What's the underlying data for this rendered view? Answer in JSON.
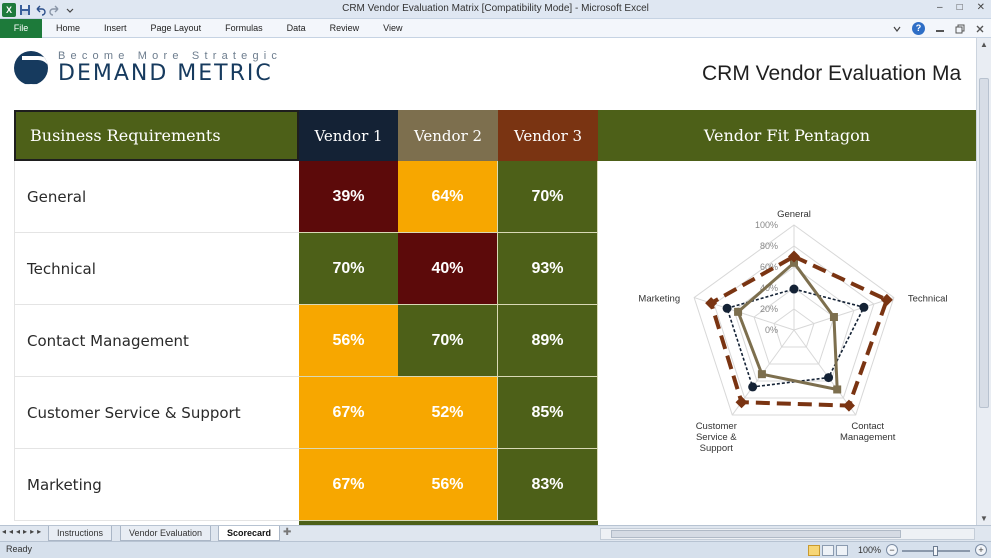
{
  "window": {
    "title": "CRM Vendor Evaluation Matrix  [Compatibility Mode]  -  Microsoft Excel",
    "app_icon_label": "X",
    "controls": [
      "–",
      "□",
      "✕"
    ]
  },
  "ribbon": {
    "file_label": "File",
    "tabs": [
      "Home",
      "Insert",
      "Page Layout",
      "Formulas",
      "Data",
      "Review",
      "View"
    ]
  },
  "logo": {
    "tagline": "Become More Strategic",
    "name": "DEMAND METRIC"
  },
  "report_title": "CRM Vendor Evaluation Ma",
  "table": {
    "header_requirements": "Business Requirements",
    "vendors": [
      "Vendor 1",
      "Vendor 2",
      "Vendor 3"
    ],
    "header_pentagon": "Vendor Fit Pentagon",
    "rows": [
      {
        "label": "General",
        "scores": [
          "39%",
          "64%",
          "70%"
        ]
      },
      {
        "label": "Technical",
        "scores": [
          "70%",
          "40%",
          "93%"
        ]
      },
      {
        "label": "Contact Management",
        "scores": [
          "56%",
          "70%",
          "89%"
        ]
      },
      {
        "label": "Customer Service & Support",
        "scores": [
          "67%",
          "52%",
          "85%"
        ]
      },
      {
        "label": "Marketing",
        "scores": [
          "67%",
          "56%",
          "83%"
        ]
      }
    ]
  },
  "colors": {
    "score_red": "#5c0a0a",
    "score_amber": "#f7a700",
    "score_green": "#4d6018",
    "vendor1": "#142235",
    "vendor2": "#7d6f4e",
    "vendor3": "#7a3412"
  },
  "chart_data": {
    "type": "radar",
    "title": "",
    "axes": [
      "General",
      "Technical",
      "Contact Management",
      "Customer Service & Support",
      "Marketing"
    ],
    "axis_labels": [
      "General",
      "Technical",
      "Contact\nManagement",
      "Customer\nService &\nSupport",
      "Marketing"
    ],
    "tick_labels": [
      "0%",
      "20%",
      "40%",
      "60%",
      "80%",
      "100%"
    ],
    "range": [
      0,
      100
    ],
    "series": [
      {
        "name": "Vendor 1",
        "values": [
          39,
          70,
          56,
          67,
          67
        ],
        "color": "#142235",
        "style": "dotted",
        "marker": "circle"
      },
      {
        "name": "Vendor 2",
        "values": [
          64,
          40,
          70,
          52,
          56
        ],
        "color": "#7d6f4e",
        "style": "solid",
        "marker": "square"
      },
      {
        "name": "Vendor 3",
        "values": [
          70,
          93,
          89,
          85,
          83
        ],
        "color": "#7a3412",
        "style": "dashed",
        "marker": "diamond"
      }
    ]
  },
  "sheet_tabs": [
    "Instructions",
    "Vendor Evaluation",
    "Scorecard"
  ],
  "active_sheet": "Scorecard",
  "status": {
    "ready": "Ready",
    "zoom": "100%"
  }
}
